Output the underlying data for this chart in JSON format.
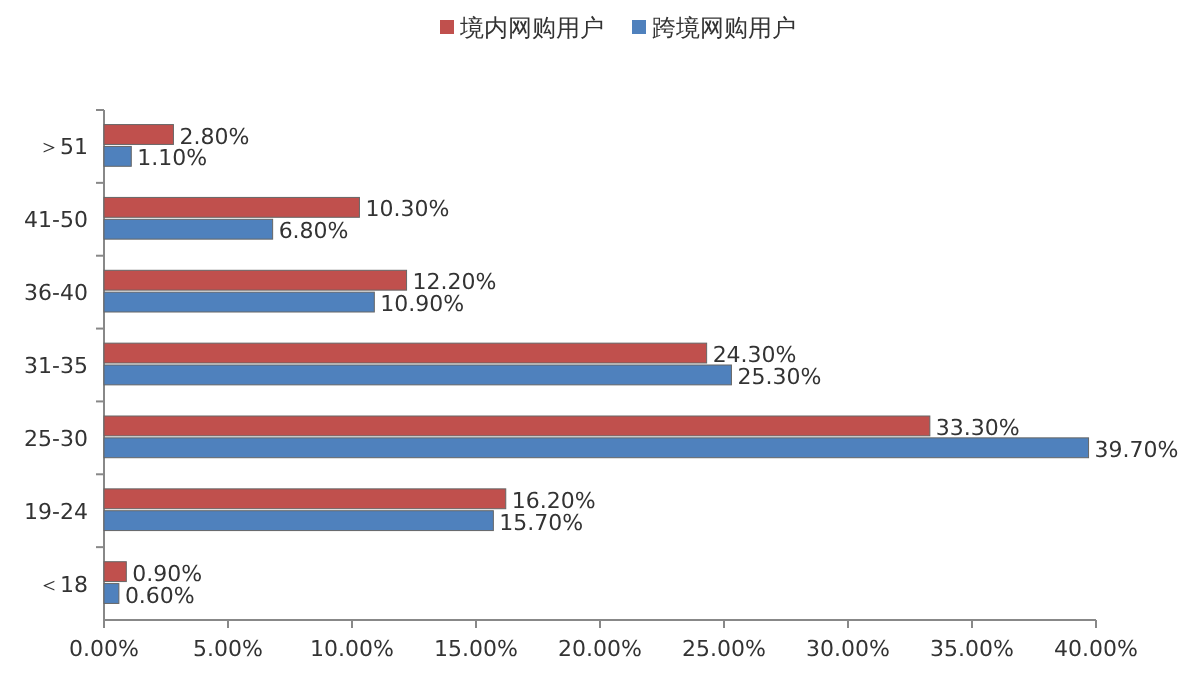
{
  "chart_data": {
    "type": "bar",
    "orientation": "horizontal",
    "categories": [
      "＞51",
      "41-50",
      "36-40",
      "31-35",
      "25-30",
      "19-24",
      "＜18"
    ],
    "series": [
      {
        "name": "境内网购用户",
        "color": "#c0504d",
        "values": [
          2.8,
          10.3,
          12.2,
          24.3,
          33.3,
          16.2,
          0.9
        ],
        "value_labels": [
          "2.80%",
          "10.30%",
          "12.20%",
          "24.30%",
          "33.30%",
          "16.20%",
          "0.90%"
        ]
      },
      {
        "name": "跨境网购用户",
        "color": "#4f81bd",
        "values": [
          1.1,
          6.8,
          10.9,
          25.3,
          39.7,
          15.7,
          0.6
        ],
        "value_labels": [
          "1.10%",
          "6.80%",
          "10.90%",
          "25.30%",
          "39.70%",
          "15.70%",
          "0.60%"
        ]
      }
    ],
    "xlim": [
      0,
      40
    ],
    "xticks": [
      {
        "value": 0,
        "label": "0.00%"
      },
      {
        "value": 5,
        "label": "5.00%"
      },
      {
        "value": 10,
        "label": "10.00%"
      },
      {
        "value": 15,
        "label": "15.00%"
      },
      {
        "value": 20,
        "label": "20.00%"
      },
      {
        "value": 25,
        "label": "25.00%"
      },
      {
        "value": 30,
        "label": "30.00%"
      },
      {
        "value": 35,
        "label": "35.00%"
      },
      {
        "value": 40,
        "label": "40.00%"
      }
    ],
    "legend": "top"
  }
}
